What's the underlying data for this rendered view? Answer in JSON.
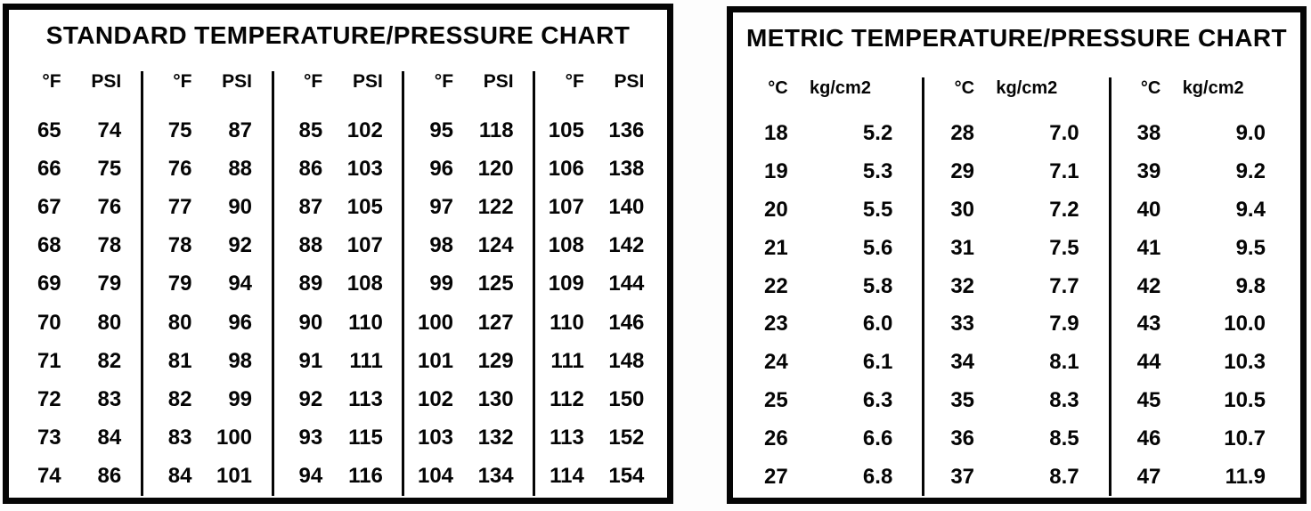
{
  "colors": {
    "ink": "#050505",
    "paper": "#ffffff"
  },
  "chart_data": [
    {
      "type": "table",
      "title": "STANDARD TEMPERATURE/PRESSURE CHART",
      "column_headers": [
        "°F",
        "PSI"
      ],
      "column_pairs": [
        [
          [
            "65",
            "74"
          ],
          [
            "66",
            "75"
          ],
          [
            "67",
            "76"
          ],
          [
            "68",
            "78"
          ],
          [
            "69",
            "79"
          ],
          [
            "70",
            "80"
          ],
          [
            "71",
            "82"
          ],
          [
            "72",
            "83"
          ],
          [
            "73",
            "84"
          ],
          [
            "74",
            "86"
          ]
        ],
        [
          [
            "75",
            "87"
          ],
          [
            "76",
            "88"
          ],
          [
            "77",
            "90"
          ],
          [
            "78",
            "92"
          ],
          [
            "79",
            "94"
          ],
          [
            "80",
            "96"
          ],
          [
            "81",
            "98"
          ],
          [
            "82",
            "99"
          ],
          [
            "83",
            "100"
          ],
          [
            "84",
            "101"
          ]
        ],
        [
          [
            "85",
            "102"
          ],
          [
            "86",
            "103"
          ],
          [
            "87",
            "105"
          ],
          [
            "88",
            "107"
          ],
          [
            "89",
            "108"
          ],
          [
            "90",
            "110"
          ],
          [
            "91",
            "111"
          ],
          [
            "92",
            "113"
          ],
          [
            "93",
            "115"
          ],
          [
            "94",
            "116"
          ]
        ],
        [
          [
            "95",
            "118"
          ],
          [
            "96",
            "120"
          ],
          [
            "97",
            "122"
          ],
          [
            "98",
            "124"
          ],
          [
            "99",
            "125"
          ],
          [
            "100",
            "127"
          ],
          [
            "101",
            "129"
          ],
          [
            "102",
            "130"
          ],
          [
            "103",
            "132"
          ],
          [
            "104",
            "134"
          ]
        ],
        [
          [
            "105",
            "136"
          ],
          [
            "106",
            "138"
          ],
          [
            "107",
            "140"
          ],
          [
            "108",
            "142"
          ],
          [
            "109",
            "144"
          ],
          [
            "110",
            "146"
          ],
          [
            "111",
            "148"
          ],
          [
            "112",
            "150"
          ],
          [
            "113",
            "152"
          ],
          [
            "114",
            "154"
          ]
        ]
      ]
    },
    {
      "type": "table",
      "title": "METRIC TEMPERATURE/PRESSURE CHART",
      "column_headers": [
        "°C",
        "kg/cm2"
      ],
      "column_pairs": [
        [
          [
            "18",
            "5.2"
          ],
          [
            "19",
            "5.3"
          ],
          [
            "20",
            "5.5"
          ],
          [
            "21",
            "5.6"
          ],
          [
            "22",
            "5.8"
          ],
          [
            "23",
            "6.0"
          ],
          [
            "24",
            "6.1"
          ],
          [
            "25",
            "6.3"
          ],
          [
            "26",
            "6.6"
          ],
          [
            "27",
            "6.8"
          ]
        ],
        [
          [
            "28",
            "7.0"
          ],
          [
            "29",
            "7.1"
          ],
          [
            "30",
            "7.2"
          ],
          [
            "31",
            "7.5"
          ],
          [
            "32",
            "7.7"
          ],
          [
            "33",
            "7.9"
          ],
          [
            "34",
            "8.1"
          ],
          [
            "35",
            "8.3"
          ],
          [
            "36",
            "8.5"
          ],
          [
            "37",
            "8.7"
          ]
        ],
        [
          [
            "38",
            "9.0"
          ],
          [
            "39",
            "9.2"
          ],
          [
            "40",
            "9.4"
          ],
          [
            "41",
            "9.5"
          ],
          [
            "42",
            "9.8"
          ],
          [
            "43",
            "10.0"
          ],
          [
            "44",
            "10.3"
          ],
          [
            "45",
            "10.5"
          ],
          [
            "46",
            "10.7"
          ],
          [
            "47",
            "11.9"
          ]
        ]
      ]
    }
  ]
}
